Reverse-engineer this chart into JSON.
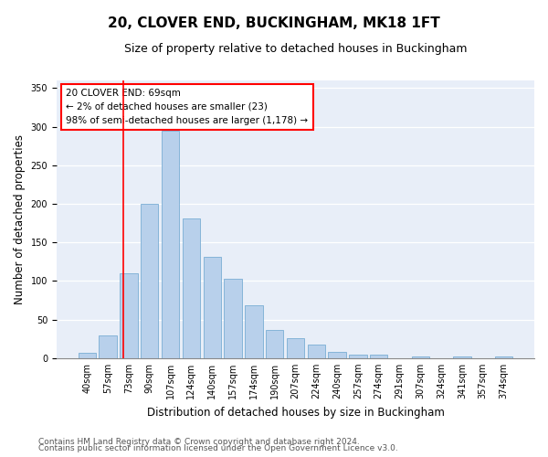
{
  "title": "20, CLOVER END, BUCKINGHAM, MK18 1FT",
  "subtitle": "Size of property relative to detached houses in Buckingham",
  "xlabel": "Distribution of detached houses by size in Buckingham",
  "ylabel": "Number of detached properties",
  "categories": [
    "40sqm",
    "57sqm",
    "73sqm",
    "90sqm",
    "107sqm",
    "124sqm",
    "140sqm",
    "157sqm",
    "174sqm",
    "190sqm",
    "207sqm",
    "224sqm",
    "240sqm",
    "257sqm",
    "274sqm",
    "291sqm",
    "307sqm",
    "324sqm",
    "341sqm",
    "357sqm",
    "374sqm"
  ],
  "values": [
    7,
    29,
    110,
    200,
    295,
    181,
    131,
    103,
    68,
    36,
    26,
    18,
    8,
    5,
    4,
    0,
    2,
    0,
    2,
    0,
    2
  ],
  "bar_color": "#b8d0eb",
  "bar_edge_color": "#7aadd4",
  "vline_x": 1.75,
  "vline_color": "red",
  "annotation_text": "20 CLOVER END: 69sqm\n← 2% of detached houses are smaller (23)\n98% of semi-detached houses are larger (1,178) →",
  "annotation_box_color": "white",
  "annotation_box_edge_color": "red",
  "ylim": [
    0,
    360
  ],
  "yticks": [
    0,
    50,
    100,
    150,
    200,
    250,
    300,
    350
  ],
  "background_color": "#e8eef8",
  "footer_line1": "Contains HM Land Registry data © Crown copyright and database right 2024.",
  "footer_line2": "Contains public sector information licensed under the Open Government Licence v3.0.",
  "title_fontsize": 11,
  "subtitle_fontsize": 9,
  "xlabel_fontsize": 8.5,
  "ylabel_fontsize": 8.5,
  "tick_fontsize": 7,
  "annotation_fontsize": 7.5,
  "footer_fontsize": 6.5
}
